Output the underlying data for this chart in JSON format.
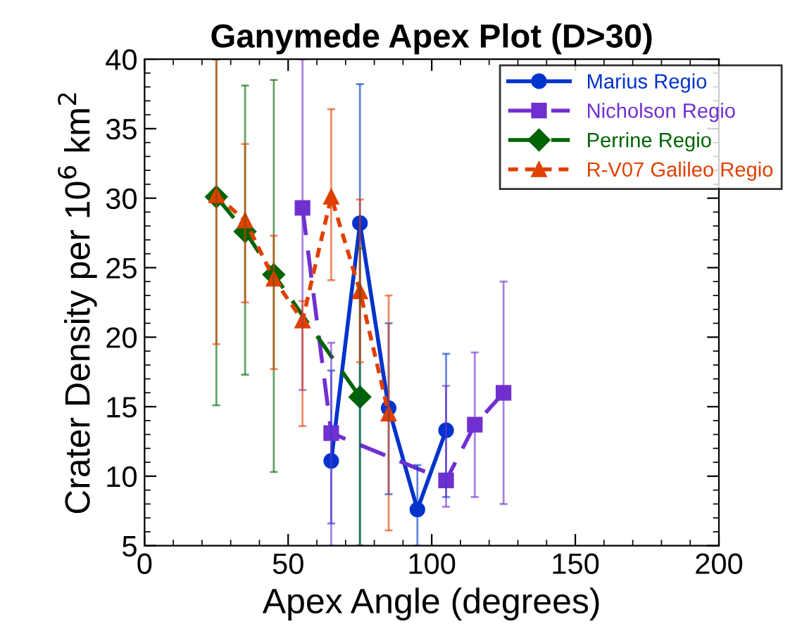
{
  "chart_data": {
    "type": "line",
    "title": "Ganymede Apex Plot (D>30)",
    "xlabel": "Apex Angle (degrees)",
    "ylabel": "Crater Density per 10$^{6}$ km$^{2}$",
    "xlim": [
      0,
      200
    ],
    "xticks": [
      0,
      50,
      100,
      150,
      200
    ],
    "ylim": [
      5,
      40
    ],
    "yticks": [
      5,
      10,
      15,
      20,
      25,
      30,
      35,
      40
    ],
    "grid": false,
    "legend": "top right",
    "series": [
      {
        "name": "Marius Regio",
        "color": "#0033cc",
        "marker": "circle",
        "line_style": "solid",
        "x": [
          65,
          75,
          85,
          95,
          105
        ],
        "values": [
          11.1,
          28.2,
          14.9,
          7.6,
          13.3
        ],
        "errors": [
          [
            6.6,
            17.6
          ],
          [
            5,
            38.2
          ],
          [
            8.7,
            21
          ],
          [
            5,
            10.8
          ],
          [
            8.5,
            18.8
          ]
        ]
      },
      {
        "name": "Nicholson Regio",
        "color": "#7030d0",
        "marker": "square",
        "line_style": "dashed",
        "x": [
          55,
          65,
          105,
          115,
          125
        ],
        "values": [
          29.3,
          13.1,
          9.7,
          13.7,
          16
        ],
        "errors": [
          [
            16.2,
            40
          ],
          [
            5,
            19.6
          ],
          [
            7.8,
            16.5
          ],
          [
            8.5,
            18.9
          ],
          [
            8,
            24
          ]
        ]
      },
      {
        "name": "Perrine Regio",
        "color": "#006400",
        "marker": "diamond",
        "line_style": "dashed",
        "x": [
          25,
          35,
          45,
          75
        ],
        "values": [
          30.1,
          27.6,
          24.5,
          15.7
        ],
        "errors": [
          [
            15.1,
            40
          ],
          [
            17.3,
            38.1
          ],
          [
            10.3,
            38.5
          ],
          10.7
        ]
      },
      {
        "name": "R-V07 Galileo Regio",
        "color": "#e04000",
        "marker": "triangle",
        "line_style": "dotted",
        "x": [
          25,
          35,
          45,
          55,
          65,
          75,
          85
        ],
        "values": [
          30.2,
          28.4,
          24.2,
          21.2,
          30.1,
          23.3,
          14.5
        ],
        "errors": [
          [
            19.5,
            40
          ],
          [
            22.5,
            33.9
          ],
          [
            17.7,
            27.3
          ],
          [
            13.6,
            22.6
          ],
          [
            24.1,
            36.4
          ],
          [
            18.2,
            29.9
          ],
          [
            6.1,
            23
          ]
        ]
      }
    ]
  }
}
